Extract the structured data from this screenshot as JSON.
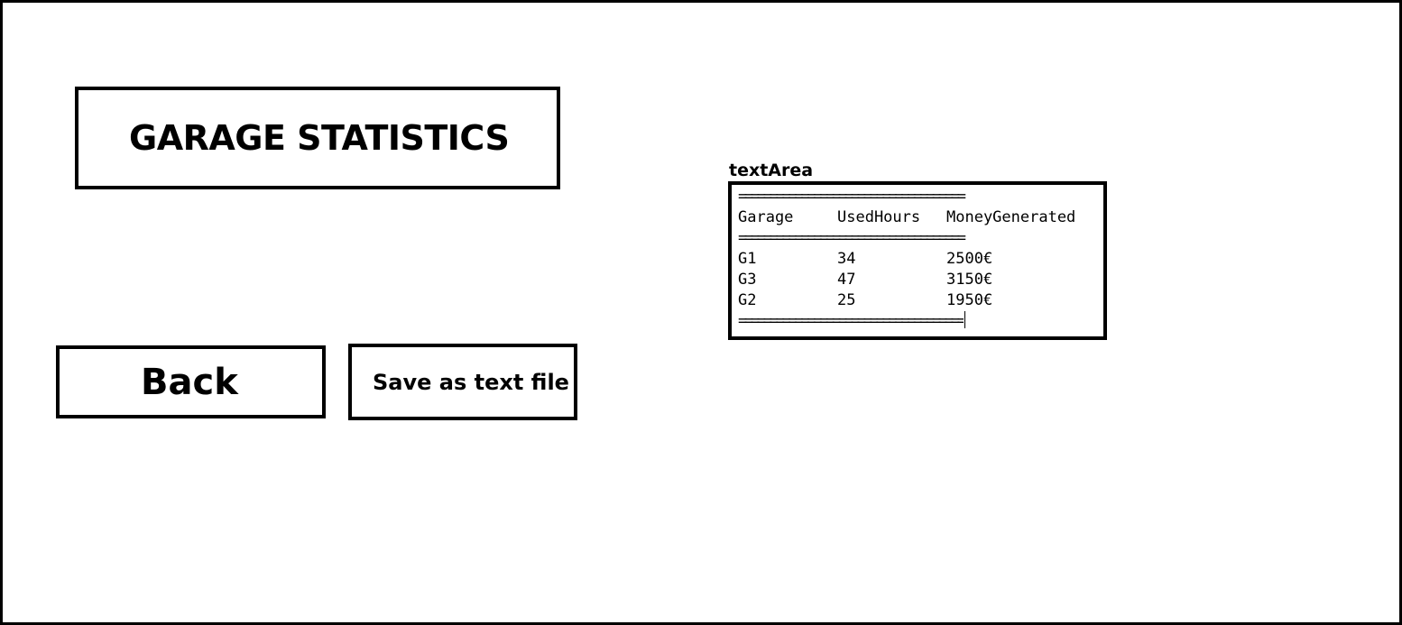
{
  "title": "GARAGE STATISTICS",
  "buttons": {
    "back": "Back",
    "save": "Save as text file"
  },
  "textarea": {
    "label": "textArea",
    "separator": "====================================",
    "headers": [
      "Garage",
      "UsedHours",
      "MoneyGenerated"
    ],
    "rows": [
      [
        "G1",
        "34",
        "2500€"
      ],
      [
        "G3",
        "47",
        "3150€"
      ],
      [
        "G2",
        "25",
        "1950€"
      ]
    ]
  }
}
